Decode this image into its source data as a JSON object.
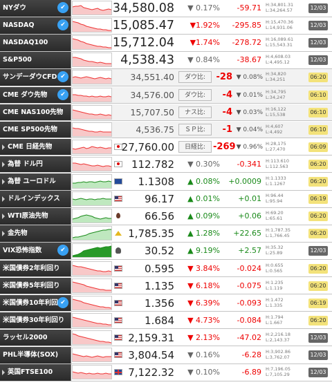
{
  "rows": [
    {
      "name": "NYダウ",
      "twitter": true,
      "arrowed": false,
      "big": true,
      "gray": false,
      "flag": "",
      "price": "34,580.08",
      "pct": "▼ 0.17%",
      "pct_dir": "down",
      "chg": "-59.71",
      "high": "H:34,801.31",
      "low": "L:34,264.57",
      "time": "12/03",
      "time_style": "dark",
      "spark": [
        8,
        7,
        7,
        6,
        9,
        10,
        11,
        12,
        11,
        10,
        12,
        13,
        12,
        11,
        12
      ]
    },
    {
      "name": "NASDAQ",
      "twitter": true,
      "arrowed": false,
      "big": true,
      "gray": false,
      "flag": "",
      "price": "15,085.47",
      "pct": "▼1.92%",
      "pct_dir": "down",
      "chg": "-295.85",
      "high": "H:15,470.36",
      "low": "L:14,931.06",
      "time": "12/03",
      "time_style": "dark",
      "spark": [
        4,
        5,
        6,
        8,
        9,
        11,
        12,
        13,
        14,
        15,
        15,
        16,
        16,
        17,
        17
      ]
    },
    {
      "name": "NASDAQ100",
      "twitter": false,
      "arrowed": false,
      "big": true,
      "gray": false,
      "flag": "",
      "price": "15,712.04",
      "pct": "▼1.74%",
      "pct_dir": "down",
      "chg": "-278.72",
      "high": "H:16,089.61",
      "low": "L:15,543.31",
      "time": "12/03",
      "time_style": "dark",
      "spark": [
        4,
        5,
        6,
        8,
        9,
        11,
        12,
        13,
        14,
        15,
        15,
        16,
        16,
        17,
        17
      ]
    },
    {
      "name": "S&P500",
      "twitter": false,
      "arrowed": false,
      "big": true,
      "gray": false,
      "flag": "",
      "price": "4,538.43",
      "pct": "▼ 0.84%",
      "pct_dir": "down",
      "chg": "-38.67",
      "high": "H:4,608.03",
      "low": "L:4,495.12",
      "time": "12/03",
      "time_style": "dark",
      "spark": [
        6,
        6,
        7,
        8,
        10,
        11,
        12,
        12,
        13,
        14,
        13,
        14,
        15,
        15,
        15
      ]
    },
    {
      "name": "サンデーダウCFD",
      "twitter": true,
      "arrowed": false,
      "big": false,
      "gray": true,
      "flag": "",
      "price": "34,551.40",
      "label": "ダウ比:",
      "diff": "-28",
      "boxpct": "▼ 0.08%",
      "pct_dir": "down",
      "high": "H:34,820",
      "low": "L:34,251",
      "time": "06:20",
      "time_style": "amber",
      "spark": [
        10,
        9,
        10,
        11,
        10,
        9,
        10,
        11,
        12,
        11,
        10,
        11,
        12,
        11,
        12
      ]
    },
    {
      "name": "CME ダウ先物",
      "twitter": true,
      "arrowed": false,
      "big": false,
      "gray": true,
      "flag": "",
      "price": "34,576.00",
      "label": "ダウ比:",
      "diff": "-4",
      "boxpct": "▼ 0.01%",
      "pct_dir": "down",
      "high": "H:34,795",
      "low": "L:34,247",
      "time": "06:10",
      "time_style": "amber",
      "spark": [
        9,
        9,
        10,
        10,
        11,
        11,
        12,
        11,
        12,
        12,
        11,
        12,
        12,
        11,
        12
      ]
    },
    {
      "name": "CME NAS100先物",
      "twitter": false,
      "arrowed": false,
      "big": false,
      "gray": true,
      "flag": "",
      "price": "15,707.50",
      "label": "ナス比:",
      "diff": "-4",
      "boxpct": "▼ 0.03%",
      "pct_dir": "down",
      "high": "H:16,122",
      "low": "L:15,538",
      "time": "06:10",
      "time_style": "amber",
      "spark": [
        6,
        7,
        8,
        9,
        10,
        11,
        12,
        12,
        13,
        13,
        12,
        13,
        14,
        13,
        14
      ]
    },
    {
      "name": "CME SP500先物",
      "twitter": false,
      "arrowed": false,
      "big": false,
      "gray": true,
      "flag": "",
      "price": "4,536.75",
      "label": "ＳＰ比:",
      "diff": "-1",
      "boxpct": "▼ 0.04%",
      "pct_dir": "down",
      "high": "H:4,607",
      "low": "L:4,492",
      "time": "06:10",
      "time_style": "amber",
      "spark": [
        7,
        8,
        8,
        9,
        10,
        11,
        12,
        12,
        13,
        13,
        12,
        13,
        13,
        13,
        13
      ]
    },
    {
      "name": "CME 日経先物",
      "twitter": false,
      "arrowed": true,
      "big": false,
      "gray": false,
      "flag": "jp",
      "price": "27,760.00",
      "label": "日経比:",
      "diff": "-269",
      "boxpct": "▼ 0.96%",
      "pct_dir": "down",
      "high": "H:28,175",
      "low": "L:27,470",
      "time": "06:09",
      "time_style": "amber",
      "spark": [
        12,
        13,
        12,
        11,
        10,
        12,
        11,
        9,
        10,
        11,
        10,
        11,
        12,
        11,
        11
      ]
    },
    {
      "name": "為替 ドル円",
      "twitter": false,
      "arrowed": true,
      "big": false,
      "gray": false,
      "flag": "jp",
      "price": "112.782",
      "pct": "▼ 0.30%",
      "pct_dir": "down",
      "chg": "-0.341",
      "high": "H:113.610",
      "low": "L:112.563",
      "time": "06:20",
      "time_style": "amber",
      "spark": [
        8,
        8,
        9,
        10,
        9,
        10,
        11,
        12,
        12,
        11,
        12,
        13,
        12,
        12,
        13
      ]
    },
    {
      "name": "為替 ユーロドル",
      "twitter": false,
      "arrowed": true,
      "big": false,
      "gray": false,
      "flag": "eu",
      "price": "1.1308",
      "pct": "▲ 0.08%",
      "pct_dir": "up",
      "chg": "+0.0009",
      "high": "H:1.1333",
      "low": "L:1.1267",
      "time": "06:20",
      "time_style": "amber",
      "spark": [
        12,
        12,
        11,
        11,
        10,
        11,
        10,
        10,
        11,
        10,
        9,
        10,
        10,
        9,
        10
      ]
    },
    {
      "name": "ドルインデックス",
      "twitter": false,
      "arrowed": true,
      "big": false,
      "gray": false,
      "flag": "us",
      "price": "96.17",
      "pct": "▲ 0.01%",
      "pct_dir": "up",
      "chg": "+0.01",
      "high": "H:96.44",
      "low": "L:95.94",
      "time": "06:19",
      "time_style": "amber",
      "spark": [
        10,
        11,
        10,
        9,
        10,
        11,
        10,
        10,
        11,
        10,
        10,
        9,
        10,
        10,
        10
      ]
    },
    {
      "name": "WTI原油先物",
      "twitter": false,
      "arrowed": true,
      "big": false,
      "gray": false,
      "flag": "oil",
      "price": "66.56",
      "pct": "▲ 0.09%",
      "pct_dir": "up",
      "chg": "+0.06",
      "high": "H:69.20",
      "low": "L:65.61",
      "time": "06:20",
      "time_style": "amber",
      "spark": [
        14,
        13,
        12,
        10,
        9,
        8,
        9,
        10,
        12,
        13,
        14,
        13,
        12,
        13,
        13
      ]
    },
    {
      "name": "金先物",
      "twitter": false,
      "arrowed": true,
      "big": false,
      "gray": false,
      "flag": "gold",
      "price": "1,785.35",
      "pct": "▲ 1.28%",
      "pct_dir": "up",
      "chg": "+22.65",
      "high": "H:1,787.35",
      "low": "L:1,766.45",
      "time": "06:20",
      "time_style": "amber",
      "spark": [
        16,
        15,
        15,
        14,
        13,
        12,
        10,
        9,
        8,
        7,
        6,
        5,
        5,
        4,
        4
      ]
    },
    {
      "name": "VIX恐怖指数",
      "twitter": true,
      "arrowed": false,
      "big": false,
      "gray": false,
      "flag": "vix",
      "price": "30.52",
      "pct": "▲ 9.19%",
      "pct_dir": "up",
      "chg": "+2.57",
      "high": "H:35.32",
      "low": "L:25.89",
      "time": "12/03",
      "time_style": "dark",
      "spark": [
        17,
        16,
        15,
        13,
        10,
        9,
        8,
        7,
        6,
        5,
        6,
        5,
        4,
        4,
        3
      ]
    },
    {
      "name": "米国債券2年利回り",
      "twitter": false,
      "arrowed": false,
      "big": false,
      "gray": false,
      "flag": "us",
      "price": "0.595",
      "pct": "▼ 3.84%",
      "pct_dir": "down",
      "chg": "-0.024",
      "high": "H:0.655",
      "low": "L:0.565",
      "time": "06:20",
      "time_style": "amber",
      "spark": [
        5,
        6,
        7,
        7,
        8,
        9,
        10,
        11,
        12,
        13,
        13,
        14,
        14,
        13,
        14
      ]
    },
    {
      "name": "米国債券5年利回り",
      "twitter": false,
      "arrowed": false,
      "big": false,
      "gray": false,
      "flag": "us",
      "price": "1.135",
      "pct": "▼ 6.18%",
      "pct_dir": "down",
      "chg": "-0.075",
      "high": "H:1.235",
      "low": "L:1.119",
      "time": "06:20",
      "time_style": "amber",
      "spark": [
        4,
        5,
        6,
        7,
        8,
        10,
        11,
        12,
        13,
        14,
        15,
        15,
        16,
        16,
        16
      ]
    },
    {
      "name": "米国債券10年利回り",
      "twitter": true,
      "arrowed": false,
      "big": false,
      "gray": false,
      "flag": "us",
      "price": "1.356",
      "pct": "▼ 6.39%",
      "pct_dir": "down",
      "chg": "-0.093",
      "high": "H:1.472",
      "low": "L:1.335",
      "time": "06:19",
      "time_style": "amber",
      "spark": [
        4,
        5,
        6,
        7,
        9,
        10,
        11,
        12,
        13,
        14,
        15,
        15,
        16,
        16,
        17
      ]
    },
    {
      "name": "米国債券30年利回り",
      "twitter": false,
      "arrowed": false,
      "big": false,
      "gray": false,
      "flag": "us",
      "price": "1.684",
      "pct": "▼ 4.73%",
      "pct_dir": "down",
      "chg": "-0.084",
      "high": "H:1.794",
      "low": "L:1.667",
      "time": "06:20",
      "time_style": "amber",
      "spark": [
        5,
        6,
        7,
        8,
        9,
        10,
        11,
        12,
        13,
        14,
        14,
        15,
        15,
        16,
        16
      ]
    },
    {
      "name": "ラッセル2000",
      "twitter": false,
      "arrowed": false,
      "big": false,
      "gray": false,
      "flag": "us",
      "price": "2,159.31",
      "pct": "▼ 2.13%",
      "pct_dir": "down",
      "chg": "-47.02",
      "high": "H:2,216.18",
      "low": "L:2,143.37",
      "time": "12/03",
      "time_style": "dark",
      "spark": [
        4,
        5,
        7,
        8,
        9,
        10,
        11,
        12,
        13,
        14,
        15,
        15,
        16,
        16,
        17
      ]
    },
    {
      "name": "PHL半導体(SOX)",
      "twitter": false,
      "arrowed": false,
      "big": false,
      "gray": false,
      "flag": "us",
      "price": "3,804.54",
      "pct": "▼ 0.16%",
      "pct_dir": "down",
      "chg": "-6.28",
      "high": "H:3,902.86",
      "low": "L:3,762.07",
      "time": "12/03",
      "time_style": "dark",
      "spark": [
        8,
        9,
        10,
        11,
        12,
        11,
        12,
        13,
        12,
        11,
        12,
        13,
        12,
        12,
        12
      ]
    },
    {
      "name": "英国FTSE100",
      "twitter": false,
      "arrowed": true,
      "big": false,
      "gray": false,
      "flag": "uk",
      "price": "7,122.32",
      "pct": "▼ 0.10%",
      "pct_dir": "down",
      "chg": "-6.89",
      "high": "H:7,196.05",
      "low": "L:7,105.29",
      "time": "12/03",
      "time_style": "dark",
      "spark": [
        9,
        10,
        11,
        10,
        11,
        12,
        11,
        12,
        12,
        11,
        12,
        12,
        11,
        12,
        12
      ]
    }
  ]
}
